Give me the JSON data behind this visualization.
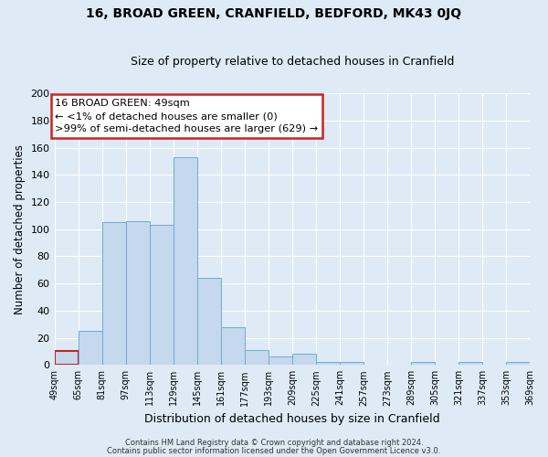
{
  "title": "16, BROAD GREEN, CRANFIELD, BEDFORD, MK43 0JQ",
  "subtitle": "Size of property relative to detached houses in Cranfield",
  "xlabel": "Distribution of detached houses by size in Cranfield",
  "ylabel": "Number of detached properties",
  "bar_color": "#c5d8ed",
  "bar_edge_color": "#6aaed6",
  "fig_bg_color": "#deeaf5",
  "ax_bg_color": "#deeaf5",
  "grid_color": "#ffffff",
  "annotation_box_color": "#ffffff",
  "annotation_box_edge": "#cc2222",
  "bins": [
    49,
    65,
    81,
    97,
    113,
    129,
    145,
    161,
    177,
    193,
    209,
    225,
    241,
    257,
    273,
    289,
    305,
    321,
    337,
    353,
    369
  ],
  "bin_labels": [
    "49sqm",
    "65sqm",
    "81sqm",
    "97sqm",
    "113sqm",
    "129sqm",
    "145sqm",
    "161sqm",
    "177sqm",
    "193sqm",
    "209sqm",
    "225sqm",
    "241sqm",
    "257sqm",
    "273sqm",
    "289sqm",
    "305sqm",
    "321sqm",
    "337sqm",
    "353sqm",
    "369sqm"
  ],
  "bar_heights": [
    10,
    25,
    105,
    106,
    103,
    153,
    64,
    28,
    11,
    6,
    8,
    2,
    2,
    0,
    0,
    2,
    0,
    2,
    0,
    2
  ],
  "ylim": [
    0,
    200
  ],
  "yticks": [
    0,
    20,
    40,
    60,
    80,
    100,
    120,
    140,
    160,
    180,
    200
  ],
  "annotation_title": "16 BROAD GREEN: 49sqm",
  "annotation_line1": "← <1% of detached houses are smaller (0)",
  "annotation_line2": ">99% of semi-detached houses are larger (629) →",
  "footer1": "Contains HM Land Registry data © Crown copyright and database right 2024.",
  "footer2": "Contains public sector information licensed under the Open Government Licence v3.0.",
  "highlight_bin_index": 0,
  "highlight_color": "#cc2222"
}
